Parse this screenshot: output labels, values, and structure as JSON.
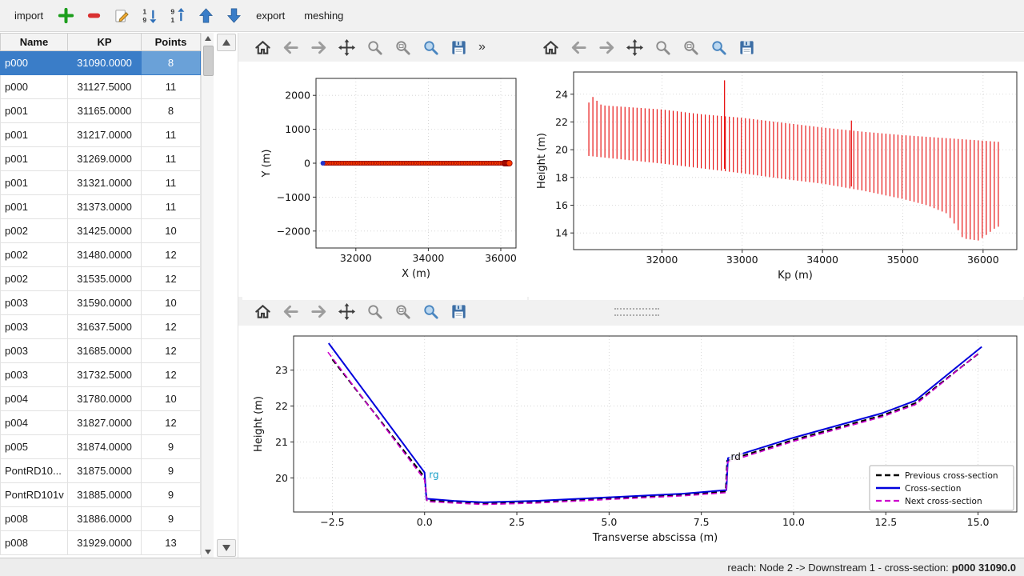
{
  "toolbar": {
    "import_label": "import",
    "export_label": "export",
    "meshing_label": "meshing",
    "icons": [
      "add-icon",
      "remove-icon",
      "edit-icon",
      "sort-asc-icon",
      "sort-desc-icon",
      "move-up-icon",
      "move-down-icon"
    ]
  },
  "table": {
    "headers": [
      "Name",
      "KP",
      "Points"
    ],
    "selected_index": 0,
    "rows": [
      [
        "p000",
        "31090.0000",
        "8"
      ],
      [
        "p000",
        "31127.5000",
        "11"
      ],
      [
        "p001",
        "31165.0000",
        "8"
      ],
      [
        "p001",
        "31217.0000",
        "11"
      ],
      [
        "p001",
        "31269.0000",
        "11"
      ],
      [
        "p001",
        "31321.0000",
        "11"
      ],
      [
        "p001",
        "31373.0000",
        "11"
      ],
      [
        "p002",
        "31425.0000",
        "10"
      ],
      [
        "p002",
        "31480.0000",
        "12"
      ],
      [
        "p002",
        "31535.0000",
        "12"
      ],
      [
        "p003",
        "31590.0000",
        "10"
      ],
      [
        "p003",
        "31637.5000",
        "12"
      ],
      [
        "p003",
        "31685.0000",
        "12"
      ],
      [
        "p003",
        "31732.5000",
        "12"
      ],
      [
        "p004",
        "31780.0000",
        "10"
      ],
      [
        "p004",
        "31827.0000",
        "12"
      ],
      [
        "p005",
        "31874.0000",
        "9"
      ],
      [
        "PontRD10...",
        "31875.0000",
        "9"
      ],
      [
        "PontRD101v",
        "31885.0000",
        "9"
      ],
      [
        "p008",
        "31886.0000",
        "9"
      ],
      [
        "p008",
        "31929.0000",
        "13"
      ]
    ]
  },
  "plot_toolbars": {
    "icons": [
      "home-icon",
      "back-icon",
      "forward-icon",
      "pan-icon",
      "zoom-icon",
      "zoom-settings-icon",
      "zoom-region-icon",
      "save-icon"
    ],
    "overflow_label": "»"
  },
  "colors": {
    "selection": "#3a7dc8",
    "selection_light": "#6aa1d8",
    "window_bg": "#f1f1f1",
    "plot_red": "#e60000",
    "plot_blue": "#0000dd",
    "plot_magenta": "#cc00cc"
  },
  "chart_data": [
    {
      "id": "plan-view",
      "type": "scatter",
      "title": "",
      "xlabel": "X (m)",
      "ylabel": "Y (m)",
      "xlim": [
        30900,
        36420
      ],
      "ylim": [
        -2500,
        2500
      ],
      "xticks": [
        32000,
        34000,
        36000
      ],
      "yticks": [
        -2000,
        -1000,
        0,
        1000,
        2000
      ],
      "grid": true,
      "series": {
        "points_x_start": 31090,
        "points_x_end": 36230,
        "points_count": 108,
        "y": 0,
        "marker_color": "#ff3b00",
        "marker_edge": "#8b0000",
        "first_point_color": "#2233cc",
        "end_cluster": {
          "x_start": 36100,
          "x_end": 36235,
          "count": 7,
          "radius": 3.6
        }
      }
    },
    {
      "id": "longitudinal-profile",
      "type": "vlines",
      "title": "",
      "xlabel": "Kp (m)",
      "ylabel": "Height (m)",
      "xlim": [
        30900,
        36420
      ],
      "ylim": [
        12.8,
        25.6
      ],
      "xticks": [
        32000,
        33000,
        34000,
        35000,
        36000
      ],
      "yticks": [
        14,
        16,
        18,
        20,
        22,
        24
      ],
      "grid": true,
      "line_color": "#e60000",
      "kp_start": 31090,
      "kp_end": 36230,
      "kp_step": 50,
      "top_envelope": [
        [
          31090,
          23.4
        ],
        [
          31140,
          23.8
        ],
        [
          31250,
          23.2
        ],
        [
          32000,
          22.9
        ],
        [
          32500,
          22.55
        ],
        [
          33000,
          22.3
        ],
        [
          33500,
          21.95
        ],
        [
          34000,
          21.6
        ],
        [
          34500,
          21.3
        ],
        [
          35000,
          21.05
        ],
        [
          35500,
          20.85
        ],
        [
          36000,
          20.65
        ],
        [
          36230,
          20.55
        ]
      ],
      "bottom_envelope": [
        [
          31090,
          19.55
        ],
        [
          31500,
          19.3
        ],
        [
          32000,
          19.0
        ],
        [
          32500,
          18.65
        ],
        [
          33000,
          18.3
        ],
        [
          33500,
          17.9
        ],
        [
          34000,
          17.55
        ],
        [
          34500,
          17.05
        ],
        [
          35000,
          16.45
        ],
        [
          35300,
          16.0
        ],
        [
          35550,
          15.4
        ],
        [
          35650,
          14.6
        ],
        [
          35750,
          13.6
        ],
        [
          35950,
          13.45
        ],
        [
          36050,
          13.9
        ],
        [
          36150,
          14.35
        ],
        [
          36230,
          14.55
        ]
      ],
      "spikes": [
        [
          32780,
          18.62,
          25.0
        ],
        [
          34360,
          17.35,
          22.1
        ]
      ]
    },
    {
      "id": "cross-section",
      "type": "line",
      "title": "",
      "xlabel": "Transverse abscissa (m)",
      "ylabel": "Height (m)",
      "xlim": [
        -3.55,
        16.05
      ],
      "ylim": [
        19.05,
        23.95
      ],
      "xticks": [
        -2.5,
        0.0,
        2.5,
        5.0,
        7.5,
        10.0,
        12.5,
        15.0
      ],
      "xtick_decimals": 1,
      "yticks": [
        20,
        21,
        22,
        23
      ],
      "grid": true,
      "series": [
        {
          "name": "Previous cross-section",
          "color": "#000000",
          "dash": "7,4",
          "width": 2,
          "points": [
            [
              -2.5,
              23.3
            ],
            [
              0.0,
              20.02
            ],
            [
              0.06,
              19.38
            ],
            [
              1.6,
              19.29
            ],
            [
              3.0,
              19.33
            ],
            [
              5.0,
              19.43
            ],
            [
              7.0,
              19.53
            ],
            [
              8.16,
              19.62
            ],
            [
              8.2,
              20.48
            ],
            [
              10.0,
              21.06
            ],
            [
              12.4,
              21.74
            ],
            [
              13.3,
              22.08
            ],
            [
              15.0,
              23.45
            ]
          ]
        },
        {
          "name": "Cross-section",
          "color": "#0000dd",
          "dash": "",
          "width": 2,
          "points": [
            [
              -2.6,
              23.75
            ],
            [
              0.0,
              20.15
            ],
            [
              0.05,
              19.42
            ],
            [
              0.8,
              19.36
            ],
            [
              1.6,
              19.32
            ],
            [
              3.0,
              19.36
            ],
            [
              5.0,
              19.46
            ],
            [
              7.0,
              19.56
            ],
            [
              8.18,
              19.66
            ],
            [
              8.22,
              20.55
            ],
            [
              10.0,
              21.12
            ],
            [
              12.4,
              21.8
            ],
            [
              13.3,
              22.15
            ],
            [
              15.1,
              23.65
            ]
          ]
        },
        {
          "name": "Next cross-section",
          "color": "#cc00cc",
          "dash": "7,4",
          "width": 1.6,
          "points": [
            [
              -2.62,
              23.5
            ],
            [
              0.0,
              19.95
            ],
            [
              0.07,
              19.34
            ],
            [
              1.6,
              19.26
            ],
            [
              3.0,
              19.3
            ],
            [
              5.0,
              19.4
            ],
            [
              7.0,
              19.5
            ],
            [
              8.17,
              19.59
            ],
            [
              8.21,
              20.44
            ],
            [
              10.0,
              21.02
            ],
            [
              12.4,
              21.7
            ],
            [
              13.3,
              22.04
            ],
            [
              15.05,
              23.5
            ]
          ]
        }
      ],
      "annotations": [
        {
          "text": "rg",
          "x": 0.12,
          "y": 20.0,
          "color": "#18a0c8",
          "box": false
        },
        {
          "text": "rd",
          "x": 8.3,
          "y": 20.5,
          "color": "#111111",
          "box": true
        }
      ],
      "legend": {
        "position": "lower right",
        "entries": [
          "Previous cross-section",
          "Cross-section",
          "Next cross-section"
        ]
      }
    }
  ],
  "status_bar": {
    "prefix": "reach: Node 2 -> Downstream 1 - cross-section: ",
    "bold": "p000 31090.0"
  }
}
